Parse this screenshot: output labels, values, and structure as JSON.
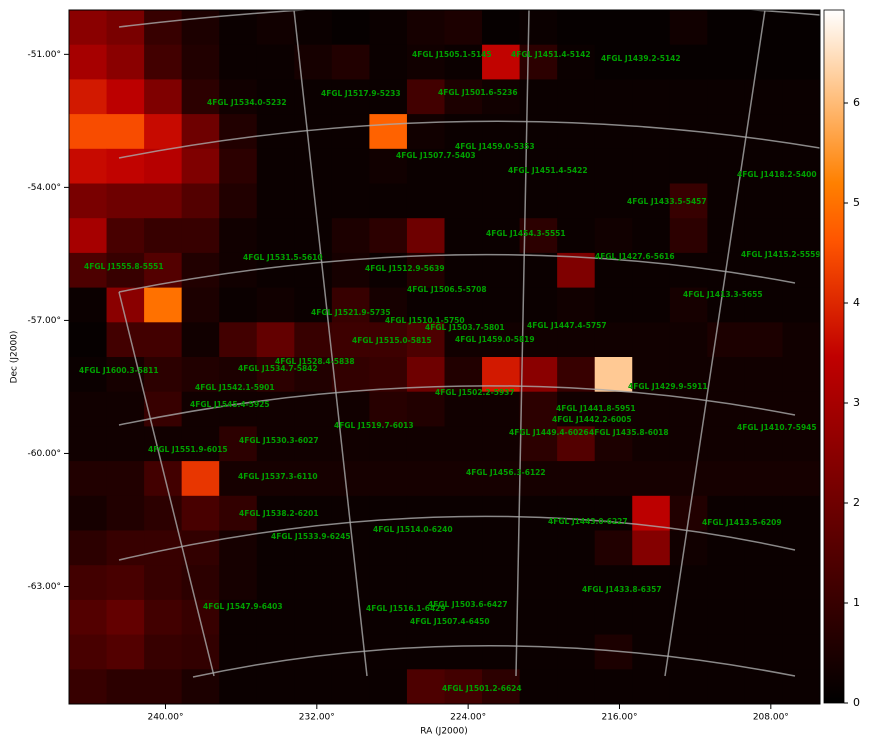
{
  "chart_data": {
    "type": "heatmap",
    "colormap": "gist_heat",
    "xlabel": "RA (J2000)",
    "ylabel": "Dec (J2000)",
    "xlim": [
      245.1,
      205.4
    ],
    "ylim": [
      -50.0,
      -65.65
    ],
    "xticks": [
      {
        "value": 240,
        "label": "240.00°"
      },
      {
        "value": 232,
        "label": "232.00°"
      },
      {
        "value": 224,
        "label": "224.00°"
      },
      {
        "value": 216,
        "label": "216.00°"
      },
      {
        "value": 208,
        "label": "208.00°"
      }
    ],
    "yticks": [
      {
        "value": -51,
        "label": "-51.00°"
      },
      {
        "value": -54,
        "label": "-54.00°"
      },
      {
        "value": -57,
        "label": "-57.00°"
      },
      {
        "value": -60,
        "label": "-60.00°"
      },
      {
        "value": -63,
        "label": "-63.00°"
      }
    ],
    "clim": [
      0,
      6.93
    ],
    "cticks": [
      0,
      1,
      2,
      3,
      4,
      5,
      6
    ],
    "z": [
      [
        2.5,
        2.2,
        1.0,
        0.5,
        0.2,
        0.3,
        0.2,
        0.1,
        0.2,
        0.4,
        0.5,
        0.1,
        0.2,
        0.1,
        0.1,
        0.1,
        0.3,
        0.1,
        0.1,
        0.1
      ],
      [
        3.0,
        2.5,
        1.2,
        0.6,
        0.2,
        0.2,
        0.4,
        0.6,
        0.2,
        0.3,
        0.2,
        3.5,
        0.8,
        0.2,
        0.1,
        0.1,
        0.1,
        0.1,
        0.1,
        0.1
      ],
      [
        3.8,
        3.4,
        2.3,
        0.8,
        0.3,
        0.2,
        0.2,
        0.2,
        0.2,
        1.2,
        0.5,
        0.3,
        0.2,
        0.2,
        0.2,
        0.2,
        0.2,
        0.2,
        0.2,
        0.2
      ],
      [
        4.5,
        4.5,
        3.6,
        2.0,
        0.6,
        0.2,
        0.2,
        0.2,
        4.8,
        0.3,
        0.2,
        0.2,
        0.2,
        0.2,
        0.2,
        0.2,
        0.2,
        0.2,
        0.2,
        0.2
      ],
      [
        3.6,
        3.5,
        3.3,
        2.3,
        0.8,
        0.2,
        0.2,
        0.2,
        0.3,
        0.2,
        0.2,
        0.2,
        0.2,
        0.2,
        0.2,
        0.2,
        0.2,
        0.2,
        0.2,
        0.2
      ],
      [
        2.2,
        2.0,
        2.0,
        1.5,
        0.6,
        0.2,
        0.2,
        0.2,
        0.2,
        0.2,
        0.2,
        0.2,
        0.2,
        0.2,
        0.2,
        0.2,
        1.0,
        0.2,
        0.2,
        0.2
      ],
      [
        3.0,
        1.3,
        1.0,
        1.0,
        0.3,
        0.2,
        0.2,
        0.5,
        0.8,
        2.0,
        0.2,
        0.2,
        0.8,
        0.2,
        0.3,
        0.2,
        0.8,
        0.2,
        0.2,
        0.2
      ],
      [
        1.4,
        1.0,
        1.5,
        0.6,
        0.3,
        0.2,
        0.2,
        0.4,
        0.2,
        0.6,
        0.2,
        0.2,
        0.2,
        2.3,
        0.2,
        0.2,
        0.2,
        0.2,
        0.2,
        0.2
      ],
      [
        0.2,
        2.5,
        5.0,
        0.5,
        0.2,
        0.3,
        0.2,
        1.0,
        0.4,
        0.2,
        0.2,
        0.2,
        0.2,
        0.3,
        0.2,
        0.2,
        0.4,
        0.2,
        0.2,
        0.2
      ],
      [
        0.1,
        1.2,
        1.2,
        0.3,
        1.2,
        1.8,
        1.0,
        1.1,
        1.1,
        1.4,
        0.3,
        0.3,
        0.3,
        0.3,
        0.3,
        0.3,
        0.3,
        0.5,
        0.5,
        0.3
      ],
      [
        0.2,
        0.4,
        0.8,
        0.6,
        0.5,
        0.8,
        0.6,
        0.9,
        1.0,
        2.0,
        0.6,
        3.8,
        2.5,
        1.0,
        6.2,
        0.3,
        0.3,
        0.3,
        0.3,
        0.3
      ],
      [
        0.3,
        0.3,
        1.0,
        0.3,
        0.3,
        0.3,
        0.3,
        0.3,
        0.7,
        0.6,
        0.3,
        0.3,
        0.8,
        0.3,
        0.3,
        0.3,
        0.3,
        0.3,
        0.3,
        0.3
      ],
      [
        0.3,
        0.3,
        0.3,
        0.3,
        0.8,
        0.3,
        0.3,
        0.3,
        0.3,
        0.3,
        0.3,
        0.3,
        0.8,
        1.5,
        0.5,
        0.3,
        0.3,
        0.3,
        0.3,
        0.3
      ],
      [
        0.6,
        0.6,
        1.2,
        4.2,
        0.4,
        0.4,
        0.4,
        0.4,
        0.4,
        0.4,
        0.4,
        0.4,
        0.4,
        0.4,
        0.4,
        0.4,
        0.4,
        0.4,
        0.4,
        0.4
      ],
      [
        0.4,
        0.6,
        0.8,
        1.3,
        0.9,
        0.2,
        0.2,
        0.2,
        0.2,
        0.2,
        0.2,
        0.2,
        0.2,
        0.2,
        0.2,
        3.4,
        0.6,
        0.2,
        0.2,
        0.2
      ],
      [
        0.8,
        1.0,
        1.0,
        0.9,
        0.4,
        0.2,
        0.2,
        0.2,
        0.2,
        0.2,
        0.2,
        0.2,
        0.2,
        0.2,
        0.6,
        2.4,
        0.3,
        0.2,
        0.2,
        0.2
      ],
      [
        1.2,
        1.3,
        1.0,
        0.8,
        0.4,
        0.2,
        0.2,
        0.2,
        0.2,
        0.2,
        0.2,
        0.2,
        0.2,
        0.2,
        0.2,
        0.2,
        0.2,
        0.2,
        0.2,
        0.2
      ],
      [
        1.5,
        1.8,
        1.2,
        1.0,
        0.2,
        0.2,
        0.2,
        0.2,
        0.2,
        0.2,
        0.2,
        0.2,
        0.2,
        0.2,
        0.2,
        0.2,
        0.2,
        0.2,
        0.2,
        0.2
      ],
      [
        1.3,
        1.5,
        1.0,
        0.9,
        0.2,
        0.2,
        0.2,
        0.2,
        0.2,
        0.2,
        0.2,
        0.2,
        0.2,
        0.2,
        0.5,
        0.2,
        0.2,
        0.2,
        0.2,
        0.2
      ],
      [
        1.0,
        0.8,
        0.8,
        0.5,
        0.2,
        0.2,
        0.2,
        0.2,
        0.2,
        1.4,
        1.2,
        0.8,
        0.2,
        0.2,
        0.2,
        0.2,
        0.2,
        0.2,
        0.2,
        0.2
      ]
    ],
    "annotation_color": "#00a000",
    "annotations": [
      "4FGL J1505.1-5145",
      "4FGL J1451.4-5142",
      "4FGL J1439.2-5142",
      "4FGL J1534.0-5232",
      "4FGL J1517.9-5233",
      "4FGL J1501.6-5236",
      "4FGL J1459.0-5353",
      "4FGL J1507.7-5403",
      "4FGL J1451.4-5422",
      "4FGL J1418.2-5400",
      "4FGL J1433.5-5457",
      "4FGL J1454.3-5551",
      "4FGL J1555.8-5551",
      "4FGL J1531.5-5610",
      "4FGL J1512.9-5639",
      "4FGL J1427.6-5616",
      "4FGL J1415.2-5559",
      "4FGL J1506.5-5708",
      "4FGL J1413.3-5655",
      "4FGL J1521.9-5735",
      "4FGL J1510.1-5750",
      "4FGL J1503.7-5801",
      "4FGL J1447.4-5757",
      "4FGL J1515.0-5815",
      "4FGL J1459.0-5819",
      "4FGL J1528.4-5838",
      "4FGL J1534.7-5842",
      "4FGL J1600.3-5811",
      "4FGL J1542.1-5901",
      "4FGL J1429.9-5911",
      "4FGL J1502.2-5937",
      "4FGL J1545.4-5925",
      "4FGL J1441.8-5951",
      "4FGL J1442.2-6005",
      "4FGL J1519.7-6013",
      "4FGL J1410.7-5945",
      "4FGL J1449.4-6026",
      "4FGL J1435.8-6018",
      "4FGL J1530.3-6027",
      "4FGL J1551.9-6015",
      "4FGL J1537.3-6110",
      "4FGL J1456.3-6122",
      "4FGL J1538.2-6201",
      "4FGL J1514.0-6240",
      "4FGL J1443.0-6227",
      "4FGL J1413.5-6209",
      "4FGL J1533.9-6245",
      "4FGL J1433.8-6357",
      "4FGL J1547.9-6403",
      "4FGL J1516.1-6429",
      "4FGL J1503.6-6427",
      "4FGL J1507.4-6450",
      "4FGL J1501.2-6624"
    ]
  }
}
